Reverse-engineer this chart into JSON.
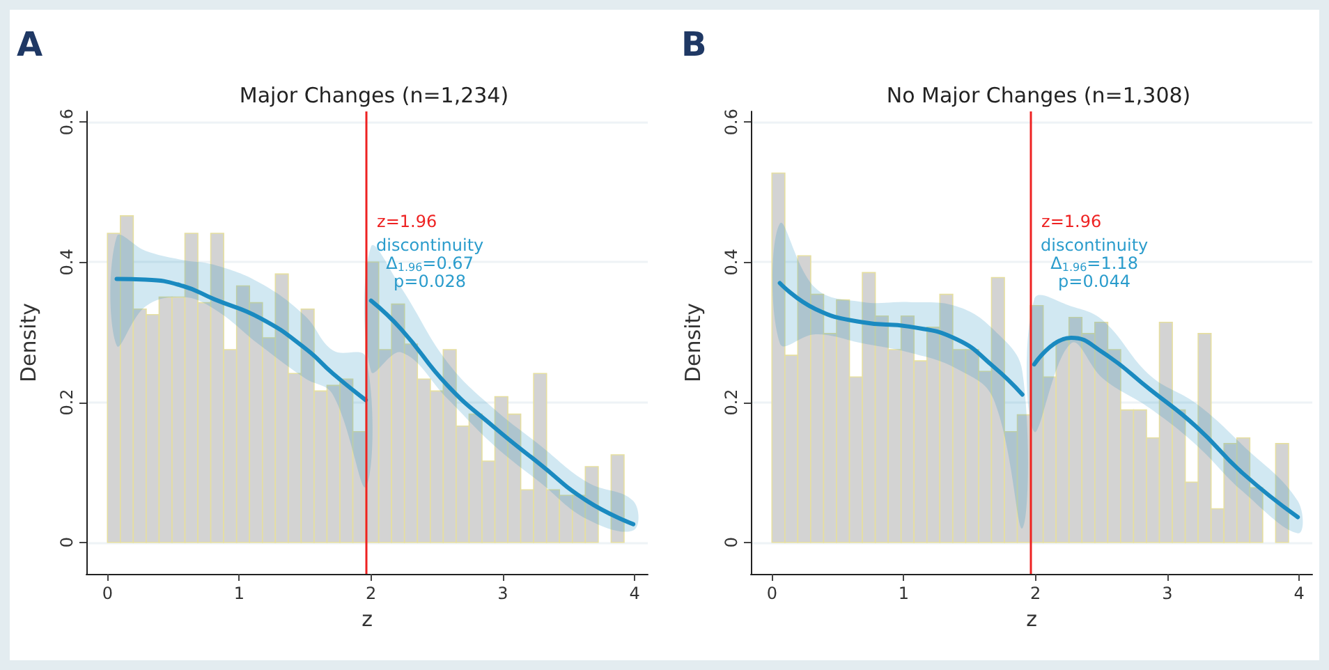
{
  "chart_data": [
    {
      "type": "histogram",
      "title": "Major Changes (n=1,234)",
      "xlabel": "z",
      "ylabel": "Density",
      "xlim": [
        -0.16,
        4.1
      ],
      "ylim": [
        -0.045,
        0.615
      ],
      "xticks": [
        0,
        1,
        2,
        3,
        4
      ],
      "yticks": [
        0,
        0.2,
        0.4,
        0.6
      ],
      "grid": "y",
      "series": [
        {
          "color": "#d3d3d3",
          "bins": [
            0,
            0.098,
            0.196,
            0.294,
            0.392,
            0.49,
            0.588,
            0.686,
            0.784,
            0.882,
            0.98,
            1.078,
            1.176,
            1.274,
            1.372,
            1.47,
            1.568,
            1.666,
            1.764,
            1.862,
            1.96,
            2.058,
            2.156,
            2.254,
            2.352,
            2.45,
            2.548,
            2.646,
            2.744,
            2.842,
            2.94,
            3.038,
            3.136,
            3.234,
            3.332,
            3.43,
            3.528,
            3.626,
            3.724,
            3.822,
            3.92
          ],
          "values": [
            0.441,
            0.466,
            0.333,
            0.325,
            0.35,
            0.35,
            0.441,
            0.342,
            0.441,
            0.275,
            0.366,
            0.342,
            0.292,
            0.383,
            0.241,
            0.333,
            0.216,
            0.224,
            0.233,
            0.158,
            0.4,
            0.275,
            0.34,
            0.283,
            0.233,
            0.216,
            0.275,
            0.166,
            0.183,
            0.116,
            0.208,
            0.183,
            0.075,
            0.241,
            0.075,
            0.067,
            0.067,
            0.108,
            0,
            0.125
          ]
        },
        {
          "type": "line",
          "color": "#1a8ac0",
          "x": [
            0.07,
            0.29,
            0.57,
            0.81,
            1.16,
            1.5,
            1.71,
            1.96
          ],
          "values": [
            0.376,
            0.375,
            0.366,
            0.347,
            0.32,
            0.277,
            0.241,
            0.203
          ],
          "lower": [
            0.281,
            0.337,
            0.35,
            0.333,
            0.281,
            0.234,
            0.211,
            0.079
          ],
          "upper": [
            0.436,
            0.416,
            0.403,
            0.396,
            0.37,
            0.323,
            0.274,
            0.264
          ]
        },
        {
          "type": "line",
          "color": "#1a8ac0",
          "x": [
            2.0,
            2.23,
            2.58,
            2.93,
            3.28,
            3.64,
            3.99
          ],
          "values": [
            0.345,
            0.304,
            0.224,
            0.165,
            0.112,
            0.059,
            0.026
          ],
          "lower": [
            0.244,
            0.271,
            0.205,
            0.139,
            0.086,
            0.033,
            0.017
          ],
          "upper": [
            0.422,
            0.363,
            0.257,
            0.191,
            0.139,
            0.086,
            0.059
          ]
        }
      ],
      "ref_lines": [
        {
          "axis": "x",
          "value": 1.96,
          "label": "z=1.96",
          "color": "#ee2222"
        }
      ],
      "annotations": [
        "A",
        "discontinuity",
        "Δ$_{1.96}$=0.67",
        "p=0.028"
      ]
    },
    {
      "type": "histogram",
      "title": "No Major Changes (n=1,308)",
      "xlabel": "z",
      "ylabel": "Density",
      "xlim": [
        -0.16,
        4.1
      ],
      "ylim": [
        -0.045,
        0.615
      ],
      "xticks": [
        0,
        1,
        2,
        3,
        4
      ],
      "yticks": [
        0,
        0.2,
        0.4,
        0.6
      ],
      "grid": "y",
      "series": [
        {
          "color": "#d3d3d3",
          "bins": [
            0,
            0.098,
            0.196,
            0.294,
            0.392,
            0.49,
            0.588,
            0.686,
            0.784,
            0.882,
            0.98,
            1.078,
            1.176,
            1.274,
            1.372,
            1.47,
            1.568,
            1.666,
            1.764,
            1.862,
            1.96,
            2.058,
            2.156,
            2.254,
            2.352,
            2.45,
            2.548,
            2.646,
            2.744,
            2.842,
            2.94,
            3.038,
            3.136,
            3.234,
            3.332,
            3.43,
            3.528,
            3.626,
            3.724,
            3.822,
            3.92
          ],
          "values": [
            0.527,
            0.267,
            0.409,
            0.354,
            0.298,
            0.346,
            0.236,
            0.385,
            0.323,
            0.275,
            0.323,
            0.259,
            0.307,
            0.354,
            0.275,
            0.275,
            0.244,
            0.378,
            0.158,
            0.182,
            0.338,
            0.236,
            0.288,
            0.321,
            0.298,
            0.314,
            0.275,
            0.189,
            0.189,
            0.149,
            0.314,
            0.189,
            0.086,
            0.298,
            0.048,
            0.141,
            0.149,
            0.078,
            0,
            0.141
          ]
        },
        {
          "type": "line",
          "color": "#1a8ac0",
          "x": [
            0.06,
            0.33,
            0.69,
            1.04,
            1.4,
            1.68,
            1.9
          ],
          "values": [
            0.37,
            0.333,
            0.314,
            0.308,
            0.29,
            0.251,
            0.211
          ],
          "lower": [
            0.284,
            0.297,
            0.284,
            0.271,
            0.248,
            0.205,
            0.02
          ],
          "upper": [
            0.455,
            0.363,
            0.343,
            0.343,
            0.337,
            0.304,
            0.244
          ]
        },
        {
          "type": "line",
          "color": "#1a8ac0",
          "x": [
            1.99,
            2.27,
            2.51,
            2.87,
            3.22,
            3.57,
            3.99
          ],
          "values": [
            0.254,
            0.292,
            0.271,
            0.218,
            0.165,
            0.099,
            0.036
          ],
          "lower": [
            0.158,
            0.284,
            0.234,
            0.191,
            0.139,
            0.073,
            0.013
          ],
          "upper": [
            0.347,
            0.337,
            0.317,
            0.238,
            0.198,
            0.139,
            0.059
          ]
        }
      ],
      "ref_lines": [
        {
          "axis": "x",
          "value": 1.96,
          "label": "z=1.96",
          "color": "#ee2222"
        }
      ],
      "annotations": [
        "B",
        "discontinuity",
        "Δ$_{1.96}$=1.18",
        "p=0.044"
      ]
    }
  ]
}
